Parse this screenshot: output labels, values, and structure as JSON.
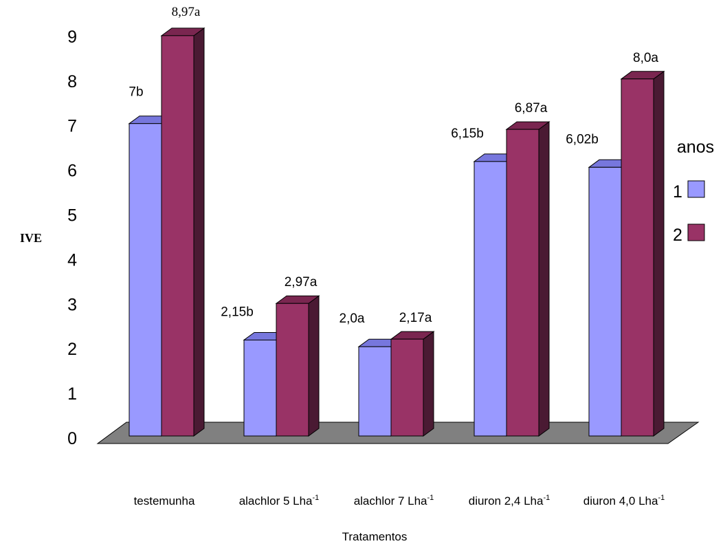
{
  "chart_data": {
    "type": "bar",
    "ylabel": "IVE",
    "xlabel": "Tratamentos",
    "ylim": [
      0,
      9
    ],
    "yticks": [
      "0",
      "1",
      "2",
      "3",
      "4",
      "5",
      "6",
      "7",
      "8",
      "9"
    ],
    "categories": [
      {
        "name": "testemunha",
        "sup": ""
      },
      {
        "name": "alachlor 5 Lha",
        "sup": "-1"
      },
      {
        "name": "alachlor 7 Lha",
        "sup": "-1"
      },
      {
        "name": "diuron 2,4 Lha",
        "sup": "-1"
      },
      {
        "name": "diuron 4,0 Lha",
        "sup": "-1"
      }
    ],
    "legend": {
      "title": "anos",
      "position": "right"
    },
    "series": [
      {
        "name": "1",
        "color": "#9999FF",
        "side_color": "#6666CC",
        "top_color": "#7777DD",
        "values": [
          7.0,
          2.15,
          2.0,
          6.15,
          6.02
        ],
        "labels": [
          "7b",
          "2,15b",
          "2,0a",
          "6,15b",
          "6,02b"
        ]
      },
      {
        "name": "2",
        "color": "#993366",
        "side_color": "#4A1A33",
        "top_color": "#7A2650",
        "values": [
          8.97,
          2.97,
          2.17,
          6.87,
          8.0
        ],
        "labels": [
          "8,97a",
          "2,97a",
          "2,17a",
          "6,87a",
          "8,0a"
        ]
      }
    ],
    "floor_color": "#808080",
    "grid": false
  }
}
